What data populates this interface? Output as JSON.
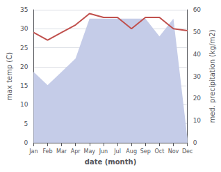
{
  "chart_data": {
    "type": "line",
    "xlabel": "date (month)",
    "ylabel": "max temp (C)",
    "y2label": "med. precipitation (kg/m2)",
    "categories": [
      "Jan",
      "Feb",
      "Mar",
      "Apr",
      "May",
      "Jun",
      "Jul",
      "Aug",
      "Sep",
      "Oct",
      "Nov",
      "Dec"
    ],
    "series": [
      {
        "type": "area",
        "color": "#c5cce8",
        "axis": "y2",
        "values": [
          32,
          26,
          32,
          38,
          56,
          56,
          56,
          56,
          56,
          48,
          56,
          2
        ]
      },
      {
        "type": "line",
        "color": "#c0504d",
        "values": [
          29.0,
          27.0,
          29.0,
          31.0,
          34.0,
          33.0,
          33.0,
          30.0,
          33.0,
          33.0,
          30.0,
          29.5
        ]
      }
    ],
    "ylim": [
      0,
      35
    ],
    "yticks": [
      0,
      5,
      10,
      15,
      20,
      25,
      30,
      35
    ],
    "y2lim": [
      0,
      60
    ],
    "y2ticks": [
      0,
      10,
      20,
      30,
      40,
      50,
      60
    ],
    "grid": true
  }
}
